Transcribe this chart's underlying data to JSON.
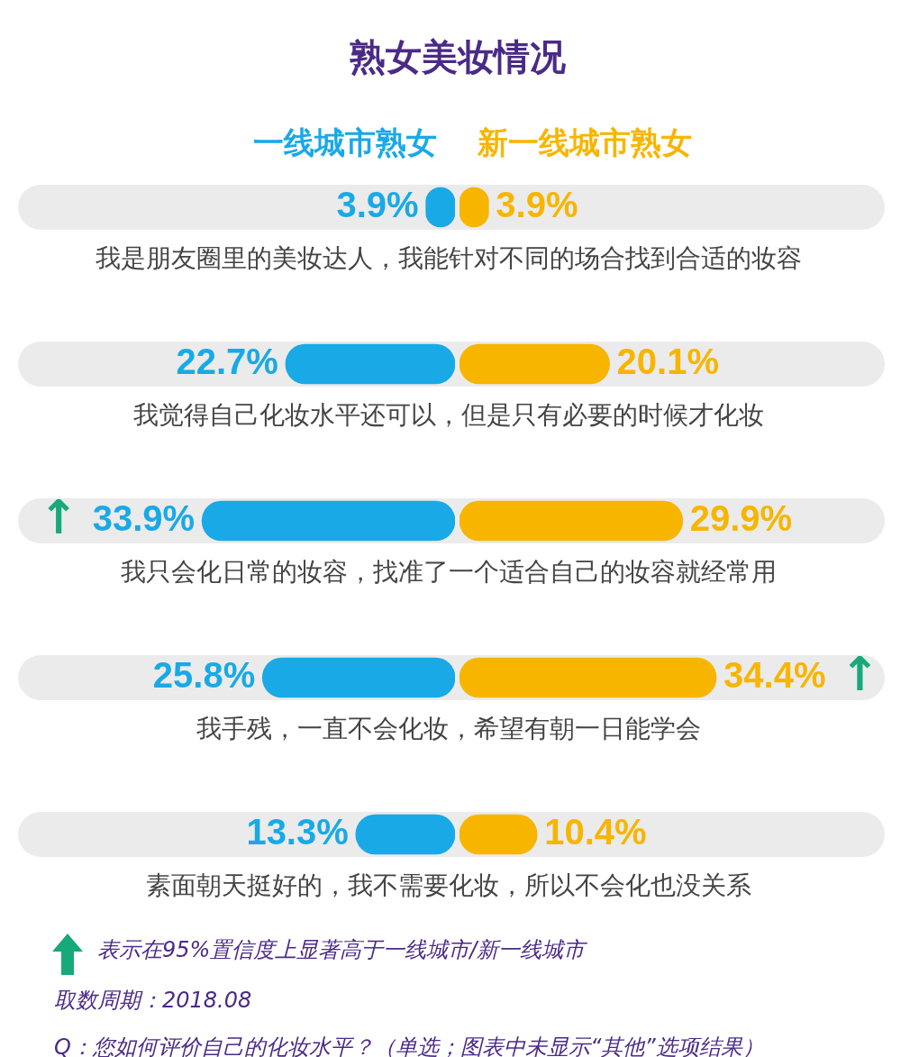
{
  "chart_data": [
    {
      "type": "bar",
      "orientation": "horizontal",
      "title": "熟女美妆情况",
      "legend": "top",
      "tick_labels": false,
      "categories": [
        "我是朋友圈里的美妆达人，我能针对不同的场合找到合适的妆容",
        "我觉得自己化妆水平还可以，但是只有必要的时候才化妆",
        "我只会化日常的妆容，找准了一个适合自己的妆容就经常用",
        "我手残，一直不会化妆，希望有朝一日能学会",
        "素面朝天挺好的，我不需要化妆，所以不会化也没关系"
      ],
      "series": [
        {
          "name": "一线城市熟女",
          "color": "#19a9e6",
          "values": [
            3.9,
            22.7,
            33.9,
            25.8,
            13.3
          ],
          "value_labels": [
            "3.9%",
            "22.7%",
            "↑ 33.9%",
            "25.8%",
            "13.3%"
          ]
        }
      ],
      "annotations": [
        "表示在95%置信度上显著高于一线城市/新一线城市",
        "取数周期：2018.08",
        "Q：您如何评价自己的化妆水平？（单选；图表中未显示“其他”选项结果）"
      ]
    },
    {
      "type": "bar",
      "orientation": "horizontal",
      "legend": "top",
      "tick_labels": false,
      "categories": [
        null,
        null,
        null,
        null,
        null
      ],
      "series": [
        {
          "name": "新一线城市熟女",
          "color": "#f7b500",
          "values": [
            3.9,
            20.1,
            29.9,
            34.4,
            10.4
          ],
          "value_labels": [
            "3.9%",
            "20.1%",
            "29.9%",
            "34.4% ↑",
            "10.4%"
          ]
        }
      ]
    }
  ]
}
